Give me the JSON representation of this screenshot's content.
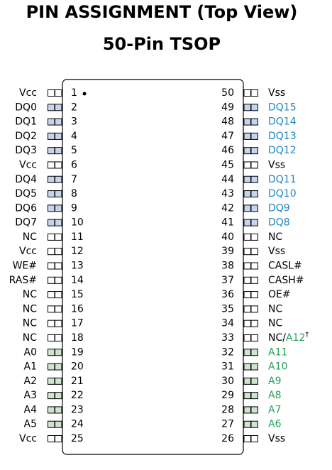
{
  "header": {
    "title": "PIN ASSIGNMENT (Top View)",
    "subtitle": "50-Pin TSOP"
  },
  "styles": {
    "other": {
      "text": "#000000",
      "pad": "#ffffff"
    },
    "data": {
      "text": "#1f86c0",
      "pad": "#c6d4ec"
    },
    "address": {
      "text": "#25a05a",
      "pad": "#cfe4cf"
    }
  },
  "left_pins": [
    {
      "number": 1,
      "label": "Vcc",
      "style": "other"
    },
    {
      "number": 2,
      "label": "DQ0",
      "style": "data"
    },
    {
      "number": 3,
      "label": "DQ1",
      "style": "data"
    },
    {
      "number": 4,
      "label": "DQ2",
      "style": "data"
    },
    {
      "number": 5,
      "label": "DQ3",
      "style": "data"
    },
    {
      "number": 6,
      "label": "Vcc",
      "style": "other"
    },
    {
      "number": 7,
      "label": "DQ4",
      "style": "data"
    },
    {
      "number": 8,
      "label": "DQ5",
      "style": "data"
    },
    {
      "number": 9,
      "label": "DQ6",
      "style": "data"
    },
    {
      "number": 10,
      "label": "DQ7",
      "style": "data"
    },
    {
      "number": 11,
      "label": "NC",
      "style": "other"
    },
    {
      "number": 12,
      "label": "Vcc",
      "style": "other"
    },
    {
      "number": 13,
      "label": "WE#",
      "style": "other"
    },
    {
      "number": 14,
      "label": "RAS#",
      "style": "other"
    },
    {
      "number": 15,
      "label": "NC",
      "style": "other"
    },
    {
      "number": 16,
      "label": "NC",
      "style": "other"
    },
    {
      "number": 17,
      "label": "NC",
      "style": "other"
    },
    {
      "number": 18,
      "label": "NC",
      "style": "other"
    },
    {
      "number": 19,
      "label": "A0",
      "style": "address"
    },
    {
      "number": 20,
      "label": "A1",
      "style": "address"
    },
    {
      "number": 21,
      "label": "A2",
      "style": "address"
    },
    {
      "number": 22,
      "label": "A3",
      "style": "address"
    },
    {
      "number": 23,
      "label": "A4",
      "style": "address"
    },
    {
      "number": 24,
      "label": "A5",
      "style": "address"
    },
    {
      "number": 25,
      "label": "Vcc",
      "style": "other"
    }
  ],
  "right_pins": [
    {
      "number": 50,
      "label": "Vss",
      "style": "other"
    },
    {
      "number": 49,
      "label": "DQ15",
      "style": "data"
    },
    {
      "number": 48,
      "label": "DQ14",
      "style": "data"
    },
    {
      "number": 47,
      "label": "DQ13",
      "style": "data"
    },
    {
      "number": 46,
      "label": "DQ12",
      "style": "data"
    },
    {
      "number": 45,
      "label": "Vss",
      "style": "other"
    },
    {
      "number": 44,
      "label": "DQ11",
      "style": "data"
    },
    {
      "number": 43,
      "label": "DQ10",
      "style": "data"
    },
    {
      "number": 42,
      "label": "DQ9",
      "style": "data"
    },
    {
      "number": 41,
      "label": "DQ8",
      "style": "data"
    },
    {
      "number": 40,
      "label": "NC",
      "style": "other"
    },
    {
      "number": 39,
      "label": "Vss",
      "style": "other"
    },
    {
      "number": 38,
      "label": "CASL#",
      "style": "other"
    },
    {
      "number": 37,
      "label": "CASH#",
      "style": "other"
    },
    {
      "number": 36,
      "label": "OE#",
      "style": "other"
    },
    {
      "number": 35,
      "label": "NC",
      "style": "other"
    },
    {
      "number": 34,
      "label": "NC",
      "style": "other"
    },
    {
      "number": 33,
      "label": "NC/",
      "alt_label": "A12",
      "note": "†",
      "style": "other",
      "alt_style": "address"
    },
    {
      "number": 32,
      "label": "A11",
      "style": "address"
    },
    {
      "number": 31,
      "label": "A10",
      "style": "address"
    },
    {
      "number": 30,
      "label": "A9",
      "style": "address"
    },
    {
      "number": 29,
      "label": "A8",
      "style": "address"
    },
    {
      "number": 28,
      "label": "A7",
      "style": "address"
    },
    {
      "number": 27,
      "label": "A6",
      "style": "address"
    },
    {
      "number": 26,
      "label": "Vss",
      "style": "other"
    }
  ]
}
